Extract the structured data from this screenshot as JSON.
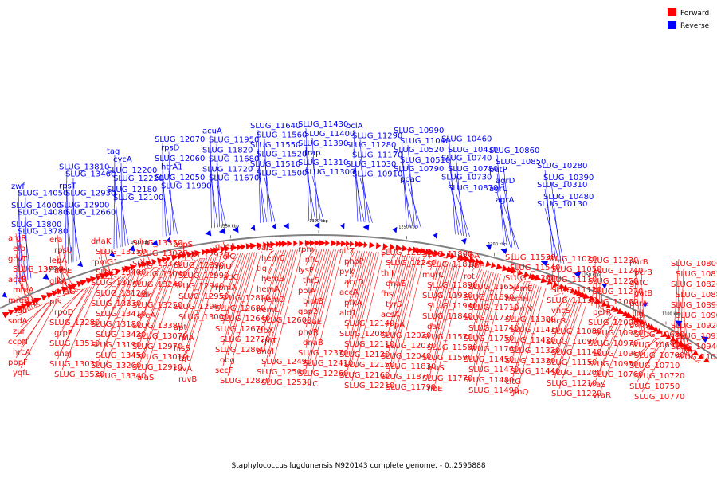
{
  "caption": "Staphylococcus lugdunensis N920143 complete genome. - 0..2595888",
  "legend": [
    {
      "label": "Forward",
      "color": "#ff0000"
    },
    {
      "label": "Reverse",
      "color": "#0000ff"
    }
  ],
  "colors": {
    "forward": "#ff0000",
    "reverse": "#0000ff",
    "backbone": "#808080"
  },
  "ticks": [
    "1450 kbp",
    "1400 kbp",
    "1350 kbp",
    "1300 kbp",
    "1250 kbp",
    "1200 kbp",
    "1150 kbp",
    "1100 kbp"
  ],
  "forward_labels": [
    "argR",
    "efp",
    "gcvT",
    "SLUG_13770",
    "accB",
    "mreA",
    "mreB",
    "cdd",
    "sodA",
    "zur",
    "ccpN",
    "hrcA",
    "pbpF",
    "yqfL",
    "era",
    "rpsU",
    "lepA",
    "aroE",
    "glkA",
    "dnaG",
    "pfs",
    "rpoD",
    "SLUG_13280",
    "grpE",
    "SLUG_13510",
    "dnaJ",
    "SLUG_13030",
    "SLUG_13520",
    "dnaK",
    "SLUG_13150",
    "rpmG1",
    "SLUG_13400",
    "SLUG_13170",
    "SLUG_13120",
    "SLUG_13330",
    "SLUG_13410",
    "SLUG_13180",
    "SLUG_13420",
    "SLUG_13190",
    "SLUG_13450",
    "SLUG_13200",
    "SLUG_13340",
    "SLUG_13350",
    "SLUG_13020",
    "SLUG_13370",
    "SLUG_13040",
    "SLUG_13240",
    "udk",
    "SLUG_13250",
    "greA",
    "SLUG_13380",
    "SLUG_13070",
    "SLUG_12970",
    "SLUG_13010",
    "SLUG_12910",
    "alaS",
    "aspS",
    "SLUG_12920",
    "SLUG_12890",
    "SLUG_12990",
    "SLUG_12940",
    "SLUG_12950",
    "SLUG_12960",
    "SLUG_13000",
    "apt",
    "relA",
    "hisS",
    "tgt",
    "ruvA",
    "ruvB",
    "queA",
    "folC",
    "rplU",
    "radC",
    "rpmA",
    "SLUG_12800",
    "SLUG_12680",
    "SLUG_12640",
    "SLUG_12670",
    "SLUG_12720",
    "SLUG_12860",
    "obg",
    "secF",
    "SLUG_12820",
    "valS",
    "hemC",
    "tig",
    "hemB",
    "hemA",
    "hemD",
    "hemL",
    "SLUG_12600",
    "clpX",
    "rplT",
    "dnaI",
    "SLUG_12490",
    "SLUG_12500",
    "SLUG_12530",
    "rpmI",
    "infC",
    "lysP",
    "thrS",
    "polA",
    "biotB",
    "gap2",
    "coaE",
    "phoR",
    "dnaB",
    "SLUG_12370",
    "SLUG_12410",
    "SLUG_12260",
    "citC",
    "citZ",
    "phoP",
    "pyk",
    "accD",
    "accA",
    "pfkA",
    "ald1",
    "SLUG_12140",
    "SLUG_12080",
    "SLUG_12110",
    "SLUG_12120",
    "SLUG_12150",
    "SLUG_12160",
    "SLUG_12210",
    "SLUG_12230",
    "SLUG_12240",
    "thiI",
    "dnaE",
    "fhs",
    "tyrS",
    "acsA",
    "ccpA",
    "SLUG_12020",
    "SLUG_12030",
    "SLUG_12040",
    "SLUG_11830",
    "SLUG_11870",
    "SLUG_11790",
    "SLUG_11800",
    "SLUG_11810",
    "murC",
    "SLUG_11890",
    "SLUG_11930",
    "SLUG_11940",
    "SLUG_11840",
    "dat",
    "SLUG_11570",
    "SLUG_11580",
    "SLUG_11590",
    "leuS",
    "SLUG_11770",
    "ribE",
    "ribA",
    "ribH",
    "rot",
    "SLUG_11650",
    "SLUG_11690",
    "SLUG_11710",
    "SLUG_11730",
    "SLUG_11740",
    "SLUG_11750",
    "SLUG_11760",
    "SLUG_11450",
    "SLUG_11470",
    "SLUG_11480",
    "SLUG_11490",
    "SLUG_11530",
    "SLUG_11540",
    "SLUG_11260",
    "hemE",
    "hemH",
    "hemY",
    "SLUG_11380",
    "SLUG_11410",
    "SLUG_11420",
    "SLUG_11320",
    "SLUG_11330",
    "SLUG_11440",
    "citG",
    "glnQ",
    "SLUG_11020",
    "SLUG_11050",
    "SLUG_11110",
    "SLUG_11120",
    "SLUG_11130",
    "vhcS",
    "vhcR",
    "SLUG_11080",
    "SLUG_11090",
    "SLUG_11140",
    "SLUG_11150",
    "SLUG_11200",
    "SLUG_11210",
    "SLUG_11220",
    "SLUG_11230",
    "SLUG_11240",
    "SLUG_11250",
    "SLUG_11270",
    "SLUG_11060",
    "perR",
    "SLUG_11000",
    "SLUG_10980",
    "SLUG_10970",
    "SLUG_10960",
    "SLUG_10950",
    "SLUG_10760",
    "vraS",
    "vraR",
    "purB",
    "pcrB",
    "gatC",
    "gatB",
    "pcrA",
    "lig",
    "gatA",
    "SLUG_10680",
    "SLUG_10690",
    "SLUG_10700",
    "SLUG_10710",
    "SLUG_10720",
    "SLUG_10750",
    "SLUG_10770",
    "SLUG_10800",
    "SLUG_10810",
    "SLUG_10820",
    "SLUG_10880",
    "SLUG_10890",
    "SLUG_10900",
    "SLUG_10920",
    "SLUG_10930",
    "SLUG_10940",
    "SLUG_11010"
  ],
  "reverse_labels": [
    "zwf",
    "SLUG_14050",
    "SLUG_14000",
    "SLUG_14080",
    "SLUG_13800",
    "SLUG_13780",
    "SLUG_13810",
    "SLUG_13460",
    "rpsT",
    "SLUG_12930",
    "SLUG_12900",
    "SLUG_12660",
    "tag",
    "cycA",
    "SLUG_12200",
    "SLUG_12220",
    "SLUG_12180",
    "SLUG_12100",
    "SLUG_12070",
    "rpsD",
    "SLUG_12060",
    "htrA1",
    "SLUG_12050",
    "SLUG_11990",
    "acuA",
    "SLUG_11950",
    "SLUG_11820",
    "SLUG_11680",
    "SLUG_11720",
    "SLUG_11670",
    "SLUG_11640",
    "SLUG_11560",
    "SLUG_11550",
    "SLUG_11520",
    "SLUG_11510",
    "SLUG_11500",
    "SLUG_11430",
    "SLUG_11400",
    "SLUG_11390",
    "trap",
    "SLUG_11310",
    "SLUG_11300",
    "pclA",
    "SLUG_11290",
    "SLUG_11280",
    "SLUG_11170",
    "SLUG_11030",
    "SLUG_10910",
    "SLUG_10990",
    "SLUG_11040",
    "SLUG_10520",
    "SLUG_10510",
    "SLUG_10790",
    "ppaC",
    "SLUG_10460",
    "SLUG_10430",
    "SLUG_10740",
    "SLUG_10780",
    "SLUG_10730",
    "SLUG_10870",
    "SLUG_10860",
    "SLUG_10850",
    "putP",
    "agrD",
    "agrC",
    "agrA",
    "SLUG_10280",
    "SLUG_10390",
    "SLUG_10310",
    "SLUG_10480",
    "SLUG_10130"
  ]
}
